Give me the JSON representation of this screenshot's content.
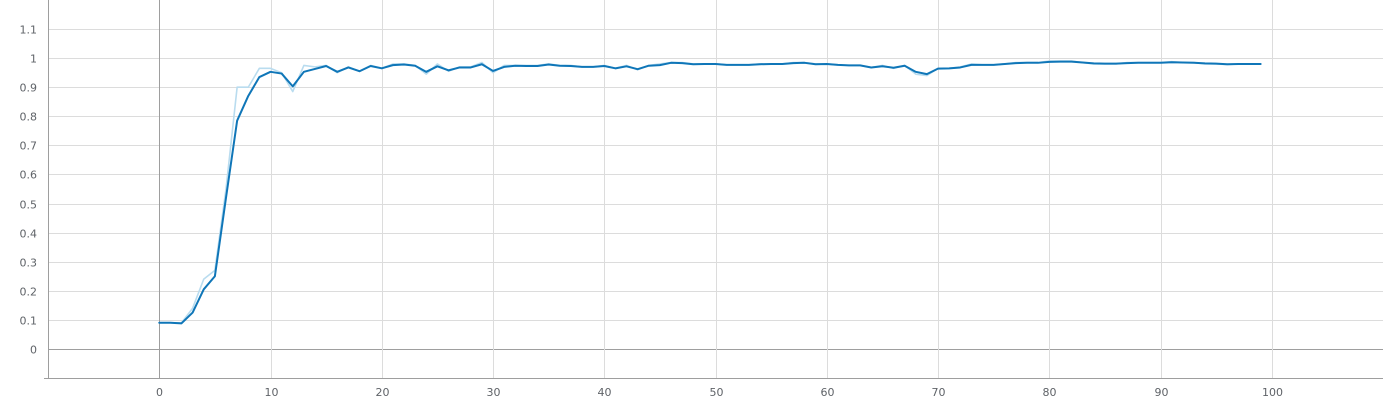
{
  "chart_data": {
    "type": "line",
    "title": "",
    "xlabel": "",
    "ylabel": "",
    "xlim": [
      -10,
      110
    ],
    "ylim": [
      -0.1,
      1.2
    ],
    "x_ticks": [
      0,
      10,
      20,
      30,
      40,
      50,
      60,
      70,
      80,
      90,
      100
    ],
    "y_ticks": [
      0,
      0.1,
      0.2,
      0.3,
      0.4,
      0.5,
      0.6,
      0.7,
      0.8,
      0.9,
      1,
      1.1
    ],
    "x_tick_labels": [
      "0",
      "10",
      "20",
      "30",
      "40",
      "50",
      "60",
      "70",
      "80",
      "90",
      "100"
    ],
    "y_tick_labels": [
      "0",
      "0.1",
      "0.2",
      "0.3",
      "0.4",
      "0.5",
      "0.6",
      "0.7",
      "0.8",
      "0.9",
      "1",
      "1.1"
    ],
    "grid": true,
    "series": [
      {
        "role": "raw",
        "color": "#b9dcef",
        "x": [
          0,
          1,
          2,
          3,
          4,
          5,
          6,
          7,
          8,
          9,
          10,
          11,
          12,
          13,
          14,
          15,
          16,
          17,
          18,
          19,
          20,
          21,
          22,
          23,
          24,
          25,
          26,
          27,
          28,
          29,
          30,
          31,
          32,
          33,
          34,
          35,
          36,
          37,
          38,
          39,
          40,
          41,
          42,
          43,
          44,
          45,
          46,
          47,
          48,
          49,
          50,
          51,
          52,
          53,
          54,
          55,
          56,
          57,
          58,
          59,
          60,
          61,
          62,
          63,
          64,
          65,
          66,
          67,
          68,
          69,
          70,
          71,
          72,
          73,
          74,
          75,
          76,
          77,
          78,
          79,
          80,
          81,
          82,
          83,
          84,
          85,
          86,
          87,
          88,
          89,
          90,
          91,
          92,
          93,
          94,
          95,
          96,
          97,
          98,
          99
        ],
        "values": [
          0.09,
          0.09,
          0.09,
          0.14,
          0.24,
          0.27,
          0.55,
          0.9,
          0.9,
          0.965,
          0.965,
          0.95,
          0.885,
          0.975,
          0.97,
          0.975,
          0.95,
          0.97,
          0.955,
          0.975,
          0.965,
          0.98,
          0.98,
          0.975,
          0.945,
          0.98,
          0.955,
          0.97,
          0.97,
          0.985,
          0.95,
          0.975,
          0.975,
          0.975,
          0.975,
          0.98,
          0.975,
          0.975,
          0.97,
          0.97,
          0.975,
          0.965,
          0.975,
          0.96,
          0.975,
          0.98,
          0.985,
          0.985,
          0.98,
          0.98,
          0.98,
          0.977,
          0.977,
          0.977,
          0.98,
          0.98,
          0.98,
          0.985,
          0.985,
          0.98,
          0.98,
          0.977,
          0.975,
          0.975,
          0.968,
          0.975,
          0.965,
          0.975,
          0.945,
          0.94,
          0.965,
          0.965,
          0.97,
          0.98,
          0.977,
          0.977,
          0.98,
          0.985,
          0.985,
          0.985,
          0.99,
          0.99,
          0.99,
          0.985,
          0.98,
          0.98,
          0.98,
          0.985,
          0.985,
          0.985,
          0.985,
          0.988,
          0.985,
          0.985,
          0.98,
          0.98,
          0.978,
          0.98,
          0.98,
          0.98
        ]
      },
      {
        "role": "smoothed",
        "color": "#0f76b8",
        "x": [
          0,
          1,
          2,
          3,
          4,
          5,
          6,
          7,
          8,
          9,
          10,
          11,
          12,
          13,
          14,
          15,
          16,
          17,
          18,
          19,
          20,
          21,
          22,
          23,
          24,
          25,
          26,
          27,
          28,
          29,
          30,
          31,
          32,
          33,
          34,
          35,
          36,
          37,
          38,
          39,
          40,
          41,
          42,
          43,
          44,
          45,
          46,
          47,
          48,
          49,
          50,
          51,
          52,
          53,
          54,
          55,
          56,
          57,
          58,
          59,
          60,
          61,
          62,
          63,
          64,
          65,
          66,
          67,
          68,
          69,
          70,
          71,
          72,
          73,
          74,
          75,
          76,
          77,
          78,
          79,
          80,
          81,
          82,
          83,
          84,
          85,
          86,
          87,
          88,
          89,
          90,
          91,
          92,
          93,
          94,
          95,
          96,
          97,
          98,
          99
        ],
        "values": [
          0.09,
          0.09,
          0.088,
          0.125,
          0.205,
          0.25,
          0.52,
          0.785,
          0.87,
          0.935,
          0.953,
          0.947,
          0.903,
          0.953,
          0.963,
          0.973,
          0.953,
          0.968,
          0.955,
          0.973,
          0.965,
          0.976,
          0.978,
          0.974,
          0.953,
          0.972,
          0.958,
          0.968,
          0.968,
          0.979,
          0.956,
          0.97,
          0.974,
          0.973,
          0.973,
          0.978,
          0.974,
          0.973,
          0.97,
          0.97,
          0.973,
          0.965,
          0.972,
          0.962,
          0.974,
          0.976,
          0.984,
          0.983,
          0.979,
          0.98,
          0.98,
          0.977,
          0.977,
          0.977,
          0.979,
          0.98,
          0.98,
          0.983,
          0.984,
          0.979,
          0.98,
          0.977,
          0.975,
          0.975,
          0.968,
          0.972,
          0.967,
          0.974,
          0.953,
          0.945,
          0.964,
          0.965,
          0.968,
          0.977,
          0.977,
          0.977,
          0.98,
          0.983,
          0.984,
          0.984,
          0.987,
          0.988,
          0.988,
          0.985,
          0.982,
          0.981,
          0.981,
          0.983,
          0.984,
          0.984,
          0.984,
          0.986,
          0.985,
          0.984,
          0.982,
          0.981,
          0.979,
          0.98,
          0.98,
          0.98
        ]
      }
    ]
  }
}
